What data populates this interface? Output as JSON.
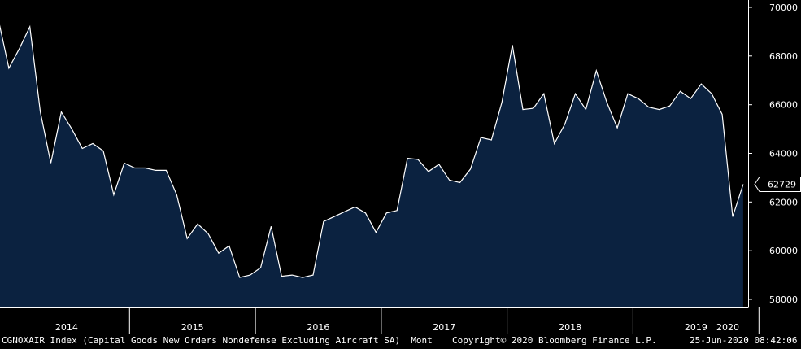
{
  "chart_data": {
    "type": "area",
    "series": [
      {
        "values": [
          69500,
          67500,
          68300,
          69200,
          65700,
          63600,
          65700,
          65000,
          64200,
          64400,
          64100,
          62300,
          63600,
          63400,
          63400,
          63300,
          63300,
          62300,
          60500,
          61100,
          60700,
          59900,
          60200,
          58900,
          59000,
          59300,
          61000,
          58950,
          59000,
          58900,
          59000,
          61200,
          61400,
          61600,
          61800,
          61550,
          60750,
          61550,
          61650,
          63800,
          63750,
          63250,
          63550,
          62900,
          62800,
          63350,
          64650,
          64550,
          66100,
          68450,
          65800,
          65850,
          66450,
          64400,
          65200,
          66450,
          65800,
          67400,
          66100,
          65050,
          66450,
          66250,
          65900,
          65800,
          65950,
          66550,
          66250,
          66850,
          66450,
          65600,
          61400,
          62729
        ]
      }
    ],
    "last_value_label": "62729",
    "y_ticks": [
      "70000",
      "68000",
      "66000",
      "64000",
      "62000",
      "60000",
      "58000"
    ],
    "y_tick_values": [
      70000,
      68000,
      66000,
      64000,
      62000,
      60000,
      58000
    ],
    "x_ticks": [
      "2014",
      "2015",
      "2016",
      "2017",
      "2018",
      "2019",
      "2020"
    ],
    "x_tick_years": [
      2014,
      2015,
      2016,
      2017,
      2018,
      2019,
      2020
    ],
    "x_start": "2013-12",
    "ylim": [
      57700,
      70300
    ],
    "line_color": "#ffffff",
    "fill_color": "#0b2240",
    "background_color": "#000000"
  },
  "footer": {
    "left": "CGNOXAIR Index (Capital Goods New Orders Nondefense Excluding Aircraft SA)  Mont",
    "middle": "Copyright© 2020 Bloomberg Finance L.P.",
    "right": "25-Jun-2020 08:42:06"
  }
}
